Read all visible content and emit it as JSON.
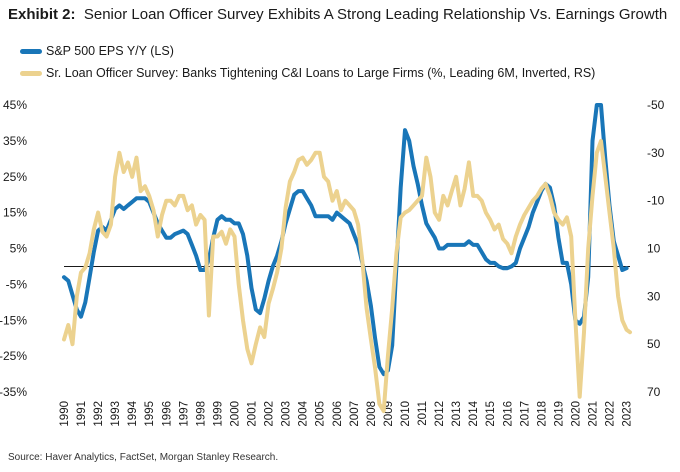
{
  "header": {
    "exhibit": "Exhibit 2:",
    "title": "Senior Loan Officer Survey Exhibits A Strong Leading Relationship Vs. Earnings Growth"
  },
  "source": "Source: Haver Analytics, FactSet, Morgan Stanley Research.",
  "colors": {
    "eps": "#1976b8",
    "survey": "#ecd28f",
    "zero_line": "#1a1a1a"
  },
  "chart_data": {
    "type": "line",
    "grid": false,
    "legend_position": "top-left",
    "x_tick_labels": [
      "1990",
      "1991",
      "1992",
      "1993",
      "1994",
      "1995",
      "1996",
      "1997",
      "1998",
      "1999",
      "2000",
      "2001",
      "2002",
      "2003",
      "2004",
      "2005",
      "2006",
      "2007",
      "2008",
      "2009",
      "2010",
      "2011",
      "2012",
      "2013",
      "2014",
      "2015",
      "2016",
      "2017",
      "2018",
      "2019",
      "2020",
      "2021",
      "2022",
      "2023"
    ],
    "xlim": [
      1990,
      2023.2
    ],
    "left_axis": {
      "ticks": [
        "45%",
        "35%",
        "25%",
        "15%",
        "5%",
        "-5%",
        "-15%",
        "-25%",
        "-35%"
      ],
      "ylim": [
        -35,
        45
      ]
    },
    "right_axis": {
      "ticks": [
        "-50",
        "-30",
        "-10",
        "10",
        "30",
        "50",
        "70"
      ],
      "ylim": [
        -50,
        70
      ],
      "inverted": true
    },
    "series": [
      {
        "name": "S&P 500 EPS Y/Y (LS)",
        "axis": "left",
        "points": [
          [
            1990.0,
            -3
          ],
          [
            1990.25,
            -4
          ],
          [
            1990.5,
            -8
          ],
          [
            1990.75,
            -12
          ],
          [
            1991.0,
            -14
          ],
          [
            1991.25,
            -10
          ],
          [
            1991.5,
            -3
          ],
          [
            1991.75,
            4
          ],
          [
            1992.0,
            10
          ],
          [
            1992.25,
            11
          ],
          [
            1992.5,
            10
          ],
          [
            1992.75,
            13
          ],
          [
            1993.0,
            16
          ],
          [
            1993.25,
            17
          ],
          [
            1993.5,
            16
          ],
          [
            1993.75,
            17
          ],
          [
            1994.0,
            18
          ],
          [
            1994.25,
            19
          ],
          [
            1994.5,
            19
          ],
          [
            1994.75,
            19
          ],
          [
            1995.0,
            18
          ],
          [
            1995.25,
            15
          ],
          [
            1995.5,
            12
          ],
          [
            1995.75,
            10
          ],
          [
            1996.0,
            8
          ],
          [
            1996.25,
            8
          ],
          [
            1996.5,
            9
          ],
          [
            1996.75,
            9.5
          ],
          [
            1997.0,
            10
          ],
          [
            1997.25,
            9
          ],
          [
            1997.5,
            6
          ],
          [
            1997.75,
            3
          ],
          [
            1998.0,
            -1
          ],
          [
            1998.25,
            -1
          ],
          [
            1998.5,
            2
          ],
          [
            1998.75,
            8
          ],
          [
            1999.0,
            13
          ],
          [
            1999.25,
            14
          ],
          [
            1999.5,
            13
          ],
          [
            1999.75,
            13
          ],
          [
            2000.0,
            12
          ],
          [
            2000.25,
            12
          ],
          [
            2000.5,
            9
          ],
          [
            2000.75,
            3
          ],
          [
            2001.0,
            -6
          ],
          [
            2001.25,
            -12
          ],
          [
            2001.5,
            -13
          ],
          [
            2001.75,
            -9
          ],
          [
            2002.0,
            -4
          ],
          [
            2002.25,
            0
          ],
          [
            2002.5,
            3
          ],
          [
            2002.75,
            7
          ],
          [
            2003.0,
            12
          ],
          [
            2003.25,
            16
          ],
          [
            2003.5,
            20
          ],
          [
            2003.75,
            21
          ],
          [
            2004.0,
            21
          ],
          [
            2004.25,
            19
          ],
          [
            2004.5,
            17
          ],
          [
            2004.75,
            14
          ],
          [
            2005.0,
            14
          ],
          [
            2005.25,
            14
          ],
          [
            2005.5,
            14
          ],
          [
            2005.75,
            13
          ],
          [
            2006.0,
            15
          ],
          [
            2006.25,
            14
          ],
          [
            2006.5,
            13
          ],
          [
            2006.75,
            12
          ],
          [
            2007.0,
            9
          ],
          [
            2007.25,
            6
          ],
          [
            2007.5,
            1
          ],
          [
            2007.75,
            -4
          ],
          [
            2008.0,
            -11
          ],
          [
            2008.25,
            -20
          ],
          [
            2008.5,
            -28
          ],
          [
            2008.75,
            -30
          ],
          [
            2009.0,
            -29
          ],
          [
            2009.25,
            -22
          ],
          [
            2009.5,
            0
          ],
          [
            2009.75,
            22
          ],
          [
            2010.0,
            38
          ],
          [
            2010.25,
            35
          ],
          [
            2010.5,
            28
          ],
          [
            2010.75,
            23
          ],
          [
            2011.0,
            17
          ],
          [
            2011.25,
            12
          ],
          [
            2011.5,
            10
          ],
          [
            2011.75,
            8
          ],
          [
            2012.0,
            5
          ],
          [
            2012.25,
            5
          ],
          [
            2012.5,
            6
          ],
          [
            2012.75,
            6
          ],
          [
            2013.0,
            6
          ],
          [
            2013.25,
            6
          ],
          [
            2013.5,
            6
          ],
          [
            2013.75,
            7
          ],
          [
            2014.0,
            6
          ],
          [
            2014.25,
            6
          ],
          [
            2014.5,
            4
          ],
          [
            2014.75,
            2
          ],
          [
            2015.0,
            1
          ],
          [
            2015.25,
            1
          ],
          [
            2015.5,
            0
          ],
          [
            2015.75,
            -0.5
          ],
          [
            2016.0,
            -0.5
          ],
          [
            2016.25,
            0
          ],
          [
            2016.5,
            1
          ],
          [
            2016.75,
            5
          ],
          [
            2017.0,
            8
          ],
          [
            2017.25,
            11
          ],
          [
            2017.5,
            15
          ],
          [
            2017.75,
            18
          ],
          [
            2018.0,
            21
          ],
          [
            2018.25,
            23
          ],
          [
            2018.5,
            22
          ],
          [
            2018.75,
            17
          ],
          [
            2019.0,
            8
          ],
          [
            2019.25,
            1
          ],
          [
            2019.5,
            1
          ],
          [
            2019.75,
            -5
          ],
          [
            2020.0,
            -15
          ],
          [
            2020.25,
            -16
          ],
          [
            2020.5,
            -14
          ],
          [
            2020.75,
            -3
          ],
          [
            2021.0,
            35
          ],
          [
            2021.25,
            45
          ],
          [
            2021.5,
            45
          ],
          [
            2021.75,
            30
          ],
          [
            2022.0,
            17
          ],
          [
            2022.25,
            7
          ],
          [
            2022.5,
            3
          ],
          [
            2022.75,
            -1
          ],
          [
            2023.0,
            -0.5
          ]
        ]
      },
      {
        "name": "Sr. Loan Officer Survey: Banks Tightening C&I Loans to Large Firms (%, Leading 6M, Inverted, RS)",
        "axis": "right",
        "points": [
          [
            1990.0,
            48
          ],
          [
            1990.25,
            42
          ],
          [
            1990.5,
            50
          ],
          [
            1990.75,
            30
          ],
          [
            1991.0,
            20
          ],
          [
            1991.25,
            18
          ],
          [
            1991.5,
            12
          ],
          [
            1991.75,
            2
          ],
          [
            1992.0,
            -5
          ],
          [
            1992.25,
            3
          ],
          [
            1992.5,
            5
          ],
          [
            1992.75,
            0
          ],
          [
            1993.0,
            -20
          ],
          [
            1993.25,
            -30
          ],
          [
            1993.5,
            -22
          ],
          [
            1993.75,
            -26
          ],
          [
            1994.0,
            -20
          ],
          [
            1994.25,
            -28
          ],
          [
            1994.5,
            -14
          ],
          [
            1994.75,
            -16
          ],
          [
            1995.0,
            -12
          ],
          [
            1995.25,
            -6
          ],
          [
            1995.5,
            5
          ],
          [
            1995.75,
            -4
          ],
          [
            1996.0,
            -10
          ],
          [
            1996.25,
            -10
          ],
          [
            1996.5,
            -8
          ],
          [
            1996.75,
            -12
          ],
          [
            1997.0,
            -12
          ],
          [
            1997.25,
            -6
          ],
          [
            1997.5,
            -8
          ],
          [
            1997.75,
            0
          ],
          [
            1998.0,
            -4
          ],
          [
            1998.25,
            -2
          ],
          [
            1998.5,
            38
          ],
          [
            1998.75,
            5
          ],
          [
            1999.0,
            5
          ],
          [
            1999.25,
            3
          ],
          [
            1999.5,
            8
          ],
          [
            1999.75,
            2
          ],
          [
            2000.0,
            5
          ],
          [
            2000.25,
            25
          ],
          [
            2000.5,
            40
          ],
          [
            2000.75,
            52
          ],
          [
            2001.0,
            58
          ],
          [
            2001.25,
            50
          ],
          [
            2001.5,
            43
          ],
          [
            2001.75,
            47
          ],
          [
            2002.0,
            33
          ],
          [
            2002.25,
            27
          ],
          [
            2002.5,
            20
          ],
          [
            2002.75,
            10
          ],
          [
            2003.0,
            -7
          ],
          [
            2003.25,
            -18
          ],
          [
            2003.5,
            -22
          ],
          [
            2003.75,
            -27
          ],
          [
            2004.0,
            -28
          ],
          [
            2004.25,
            -25
          ],
          [
            2004.5,
            -27
          ],
          [
            2004.75,
            -30
          ],
          [
            2005.0,
            -30
          ],
          [
            2005.25,
            -20
          ],
          [
            2005.5,
            -18
          ],
          [
            2005.75,
            -10
          ],
          [
            2006.0,
            -14
          ],
          [
            2006.25,
            -6
          ],
          [
            2006.5,
            -10
          ],
          [
            2006.75,
            -8
          ],
          [
            2007.0,
            -6
          ],
          [
            2007.25,
            0
          ],
          [
            2007.5,
            15
          ],
          [
            2007.75,
            35
          ],
          [
            2008.0,
            48
          ],
          [
            2008.25,
            60
          ],
          [
            2008.5,
            75
          ],
          [
            2008.75,
            78
          ],
          [
            2009.0,
            55
          ],
          [
            2009.25,
            35
          ],
          [
            2009.5,
            12
          ],
          [
            2009.75,
            -3
          ],
          [
            2010.0,
            -5
          ],
          [
            2010.25,
            -6
          ],
          [
            2010.5,
            -8
          ],
          [
            2010.75,
            -10
          ],
          [
            2011.0,
            -12
          ],
          [
            2011.25,
            -28
          ],
          [
            2011.5,
            -20
          ],
          [
            2011.75,
            -5
          ],
          [
            2012.0,
            -2
          ],
          [
            2012.25,
            -12
          ],
          [
            2012.5,
            -8
          ],
          [
            2012.75,
            -14
          ],
          [
            2013.0,
            -20
          ],
          [
            2013.25,
            -8
          ],
          [
            2013.5,
            -15
          ],
          [
            2013.75,
            -26
          ],
          [
            2014.0,
            -12
          ],
          [
            2014.25,
            -12
          ],
          [
            2014.5,
            -10
          ],
          [
            2014.75,
            -5
          ],
          [
            2015.0,
            -2
          ],
          [
            2015.25,
            2
          ],
          [
            2015.5,
            0
          ],
          [
            2015.75,
            6
          ],
          [
            2016.0,
            8
          ],
          [
            2016.25,
            12
          ],
          [
            2016.5,
            5
          ],
          [
            2016.75,
            0
          ],
          [
            2017.0,
            -4
          ],
          [
            2017.25,
            -7
          ],
          [
            2017.5,
            -10
          ],
          [
            2017.75,
            -12
          ],
          [
            2018.0,
            -15
          ],
          [
            2018.25,
            -17
          ],
          [
            2018.5,
            -12
          ],
          [
            2018.75,
            -5
          ],
          [
            2019.0,
            -2
          ],
          [
            2019.25,
            0
          ],
          [
            2019.5,
            -3
          ],
          [
            2019.75,
            5
          ],
          [
            2020.0,
            40
          ],
          [
            2020.25,
            72
          ],
          [
            2020.5,
            45
          ],
          [
            2020.75,
            10
          ],
          [
            2021.0,
            -12
          ],
          [
            2021.25,
            -30
          ],
          [
            2021.5,
            -35
          ],
          [
            2021.75,
            -20
          ],
          [
            2022.0,
            -5
          ],
          [
            2022.25,
            10
          ],
          [
            2022.5,
            30
          ],
          [
            2022.75,
            40
          ],
          [
            2023.0,
            44
          ],
          [
            2023.2,
            45
          ]
        ]
      }
    ]
  }
}
